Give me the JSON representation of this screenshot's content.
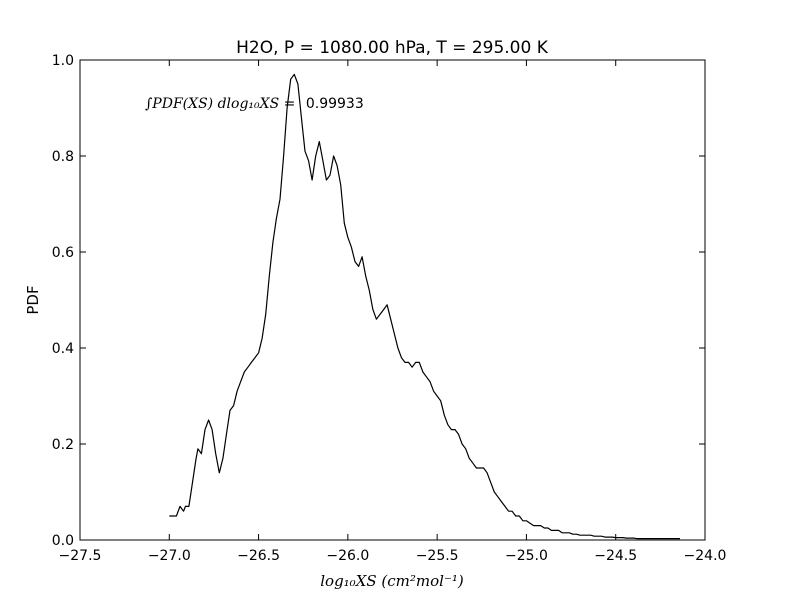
{
  "chart_data": {
    "type": "line",
    "title": "H2O, P = 1080.00 hPa, T = 295.00 K",
    "xlabel": "log₁₀XS (cm²mol⁻¹)",
    "ylabel": "PDF",
    "xlim": [
      -27.5,
      -24.0
    ],
    "ylim": [
      0.0,
      1.0
    ],
    "x_ticks": [
      -27.5,
      -27.0,
      -26.5,
      -26.0,
      -25.5,
      -25.0,
      -24.5,
      -24.0
    ],
    "x_tick_labels": [
      "−27.5",
      "−27.0",
      "−26.5",
      "−26.0",
      "−25.5",
      "−25.0",
      "−24.5",
      "−24.0"
    ],
    "y_ticks": [
      0.0,
      0.2,
      0.4,
      0.6,
      0.8,
      1.0
    ],
    "y_tick_labels": [
      "0.0",
      "0.2",
      "0.4",
      "0.6",
      "0.8",
      "1.0"
    ],
    "grid": false,
    "annotation": {
      "formula": "∫PDF(XS) dlog₁₀XS =",
      "value": "0.99933"
    },
    "series": [
      {
        "color": "#000000",
        "x": [
          -27.0,
          -26.96,
          -26.94,
          -26.92,
          -26.91,
          -26.89,
          -26.87,
          -26.85,
          -26.84,
          -26.82,
          -26.8,
          -26.78,
          -26.76,
          -26.74,
          -26.72,
          -26.7,
          -26.68,
          -26.66,
          -26.64,
          -26.62,
          -26.6,
          -26.58,
          -26.56,
          -26.54,
          -26.52,
          -26.5,
          -26.48,
          -26.46,
          -26.44,
          -26.42,
          -26.4,
          -26.38,
          -26.36,
          -26.34,
          -26.32,
          -26.3,
          -26.28,
          -26.26,
          -26.24,
          -26.22,
          -26.2,
          -26.18,
          -26.16,
          -26.14,
          -26.12,
          -26.1,
          -26.08,
          -26.06,
          -26.04,
          -26.02,
          -26.0,
          -25.98,
          -25.96,
          -25.94,
          -25.92,
          -25.9,
          -25.88,
          -25.86,
          -25.84,
          -25.82,
          -25.8,
          -25.78,
          -25.76,
          -25.74,
          -25.72,
          -25.7,
          -25.68,
          -25.66,
          -25.64,
          -25.62,
          -25.6,
          -25.58,
          -25.56,
          -25.54,
          -25.52,
          -25.5,
          -25.48,
          -25.46,
          -25.44,
          -25.42,
          -25.4,
          -25.38,
          -25.36,
          -25.34,
          -25.32,
          -25.3,
          -25.28,
          -25.26,
          -25.24,
          -25.22,
          -25.2,
          -25.18,
          -25.16,
          -25.14,
          -25.12,
          -25.1,
          -25.08,
          -25.06,
          -25.04,
          -25.02,
          -25.0,
          -24.98,
          -24.96,
          -24.94,
          -24.92,
          -24.9,
          -24.88,
          -24.86,
          -24.84,
          -24.82,
          -24.8,
          -24.78,
          -24.76,
          -24.74,
          -24.72,
          -24.7,
          -24.68,
          -24.66,
          -24.64,
          -24.62,
          -24.6,
          -24.58,
          -24.56,
          -24.54,
          -24.52,
          -24.5,
          -24.48,
          -24.46,
          -24.44,
          -24.42,
          -24.4,
          -24.38,
          -24.36,
          -24.34,
          -24.32,
          -24.3,
          -24.28,
          -24.26,
          -24.24,
          -24.22,
          -24.2,
          -24.18,
          -24.16,
          -24.14
        ],
        "y": [
          0.05,
          0.05,
          0.07,
          0.06,
          0.07,
          0.07,
          0.12,
          0.17,
          0.19,
          0.18,
          0.23,
          0.25,
          0.23,
          0.18,
          0.14,
          0.17,
          0.22,
          0.27,
          0.28,
          0.31,
          0.33,
          0.35,
          0.36,
          0.37,
          0.38,
          0.39,
          0.42,
          0.47,
          0.55,
          0.62,
          0.67,
          0.71,
          0.8,
          0.9,
          0.96,
          0.97,
          0.95,
          0.88,
          0.81,
          0.79,
          0.75,
          0.8,
          0.83,
          0.79,
          0.75,
          0.76,
          0.8,
          0.78,
          0.74,
          0.66,
          0.63,
          0.61,
          0.58,
          0.57,
          0.59,
          0.55,
          0.52,
          0.48,
          0.46,
          0.47,
          0.48,
          0.49,
          0.46,
          0.43,
          0.4,
          0.38,
          0.37,
          0.37,
          0.36,
          0.37,
          0.37,
          0.35,
          0.34,
          0.33,
          0.31,
          0.3,
          0.29,
          0.26,
          0.24,
          0.23,
          0.23,
          0.22,
          0.2,
          0.19,
          0.17,
          0.16,
          0.15,
          0.15,
          0.15,
          0.14,
          0.12,
          0.1,
          0.09,
          0.08,
          0.07,
          0.06,
          0.06,
          0.05,
          0.05,
          0.04,
          0.04,
          0.035,
          0.03,
          0.03,
          0.03,
          0.025,
          0.025,
          0.02,
          0.02,
          0.02,
          0.015,
          0.015,
          0.015,
          0.012,
          0.012,
          0.01,
          0.01,
          0.01,
          0.01,
          0.008,
          0.008,
          0.008,
          0.006,
          0.006,
          0.006,
          0.005,
          0.005,
          0.005,
          0.004,
          0.004,
          0.004,
          0.003,
          0.003,
          0.003,
          0.003,
          0.003,
          0.003,
          0.003,
          0.003,
          0.003,
          0.003,
          0.003,
          0.003,
          0.003
        ]
      }
    ]
  }
}
